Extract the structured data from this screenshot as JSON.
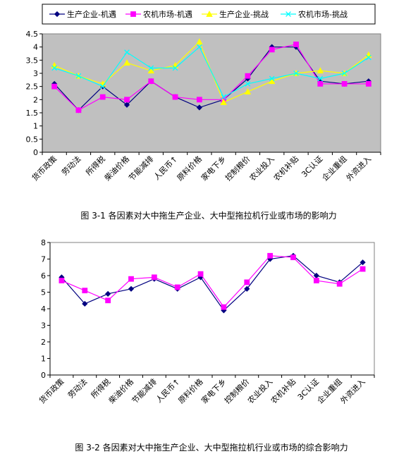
{
  "chart_data": [
    {
      "type": "line",
      "categories": [
        "货币政策",
        "劳动法",
        "所得税",
        "柴油价格",
        "节能减排",
        "人民币↑",
        "原料价格",
        "家电下乡",
        "控制粮价",
        "农业投入",
        "农机补贴",
        "3C认证",
        "企业重组",
        "外资进入"
      ],
      "ylim": [
        0,
        4.5
      ],
      "yticks": [
        "0",
        "0.5",
        "1",
        "1.5",
        "2",
        "2.5",
        "3",
        "3.5",
        "4",
        "4.5"
      ],
      "grid": false,
      "legend": "top",
      "plot_background": "#c0c0c0",
      "series": [
        {
          "name": "生产企业-机遇",
          "color": "#000080",
          "marker": "diamond",
          "values": [
            2.6,
            1.6,
            2.5,
            1.8,
            2.7,
            2.1,
            1.7,
            2.0,
            2.8,
            4.0,
            4.0,
            2.7,
            2.6,
            2.7
          ]
        },
        {
          "name": "农机市场-机遇",
          "color": "#ff00ff",
          "marker": "square",
          "values": [
            2.5,
            1.6,
            2.1,
            2.0,
            2.7,
            2.1,
            2.0,
            2.0,
            2.9,
            3.9,
            4.1,
            2.6,
            2.6,
            2.6
          ]
        },
        {
          "name": "生产企业-挑战",
          "color": "#ffff00",
          "marker": "triangle",
          "values": [
            3.3,
            2.9,
            2.6,
            3.4,
            3.1,
            3.3,
            4.2,
            1.9,
            2.3,
            2.7,
            3.0,
            3.1,
            3.0,
            3.7
          ]
        },
        {
          "name": "农机市场-挑战",
          "color": "#00ffff",
          "marker": "x",
          "values": [
            3.2,
            2.9,
            2.5,
            3.8,
            3.2,
            3.2,
            4.0,
            2.1,
            2.6,
            2.8,
            3.0,
            2.8,
            3.0,
            3.6
          ]
        }
      ],
      "caption": "图 3-1 各因素对大中拖生产企业、大中型拖拉机行业或市场的影响力"
    },
    {
      "type": "line",
      "categories": [
        "货币政策",
        "劳动法",
        "所得税",
        "柴油价格",
        "节能减排",
        "人民币↑",
        "原料价格",
        "家电下乡",
        "控制粮价",
        "农业投入",
        "农机补贴",
        "3C认证",
        "企业重组",
        "外资进入"
      ],
      "ylim": [
        0,
        8
      ],
      "yticks": [
        "0",
        "1",
        "2",
        "3",
        "4",
        "5",
        "6",
        "7",
        "8"
      ],
      "grid": false,
      "legend": "none",
      "plot_background": "#ffffff",
      "series": [
        {
          "color": "#000080",
          "marker": "diamond",
          "values": [
            5.9,
            4.3,
            4.9,
            5.2,
            5.8,
            5.2,
            5.9,
            3.9,
            5.2,
            7.0,
            7.2,
            6.0,
            5.6,
            6.8
          ]
        },
        {
          "color": "#ff00ff",
          "marker": "square",
          "values": [
            5.7,
            5.1,
            4.5,
            5.8,
            5.9,
            5.3,
            6.1,
            4.1,
            5.6,
            7.2,
            7.1,
            5.7,
            5.5,
            6.4
          ]
        }
      ],
      "caption": "图 3-2 各因素对大中拖生产企业、大中型拖拉机行业或市场的综合影响力"
    }
  ]
}
